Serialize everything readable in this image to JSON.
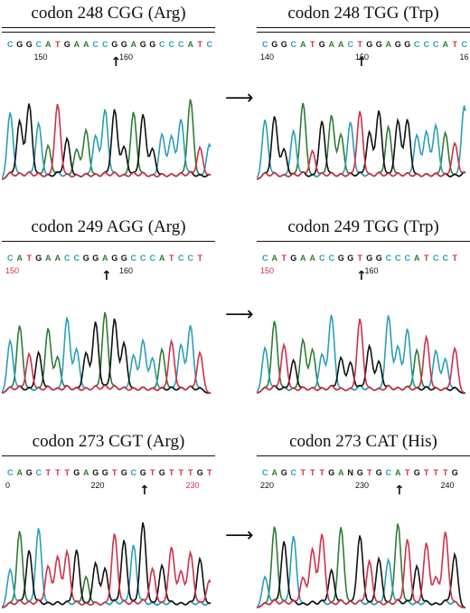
{
  "colors": {
    "A": "#2e7d32",
    "C": "#2a9fb8",
    "G": "#111111",
    "T": "#d0304a"
  },
  "panels": [
    {
      "id": "p1",
      "title": "codon 248 CGG (Arg)",
      "double_rule": true,
      "sequence": "CGGCATGAACCGGAGGCCCATC",
      "positions": [
        {
          "label": "150",
          "at": 3,
          "color": "#111111"
        },
        {
          "label": "160",
          "at": 12,
          "color": "#111111"
        }
      ],
      "arrow_at": 11
    },
    {
      "id": "p2",
      "title": "codon 248 TGG (Trp)",
      "double_rule": true,
      "sequence": "CGGCATGAACTGGAGGCCCATC",
      "positions": [
        {
          "label": "140",
          "at": 0,
          "color": "#111111"
        },
        {
          "label": "150",
          "at": 10,
          "color": "#111111"
        },
        {
          "label": "16",
          "at": 21,
          "color": "#111111"
        }
      ],
      "arrow_at": 10
    },
    {
      "id": "p3",
      "title": "codon 249 AGG (Arg)",
      "double_rule": false,
      "sequence": "CATGAACCGGAGGCCCATCCT",
      "positions": [
        {
          "label": "150",
          "at": 0,
          "color": "#d0304a"
        },
        {
          "label": "160",
          "at": 12,
          "color": "#111111"
        }
      ],
      "arrow_at": 10
    },
    {
      "id": "p4",
      "title": "codon 249 TGG (Trp)",
      "double_rule": false,
      "sequence": "CATGAACCGGTGGCCCATCCT",
      "positions": [
        {
          "label": "150",
          "at": 0,
          "color": "#d0304a"
        },
        {
          "label": "160",
          "at": 11,
          "color": "#111111"
        }
      ],
      "arrow_at": 10
    },
    {
      "id": "p5",
      "title": "codon 273 CGT (Arg)",
      "double_rule": false,
      "sequence": "CAGCTTTGAGGTGCGTGTTTGT",
      "positions": [
        {
          "label": "0",
          "at": 0,
          "color": "#111111"
        },
        {
          "label": "220",
          "at": 9,
          "color": "#111111"
        },
        {
          "label": "230",
          "at": 19,
          "color": "#d0304a"
        }
      ],
      "arrow_at": 14
    },
    {
      "id": "p6",
      "title": "codon 273 CAT (His)",
      "double_rule": false,
      "sequence": "CAGCTTTGANGTGCATGTTTG",
      "positions": [
        {
          "label": "220",
          "at": 0,
          "color": "#111111"
        },
        {
          "label": "230",
          "at": 10,
          "color": "#111111"
        },
        {
          "label": "240",
          "at": 19,
          "color": "#111111"
        }
      ],
      "arrow_at": 14
    }
  ],
  "transition_arrow": "⟶"
}
